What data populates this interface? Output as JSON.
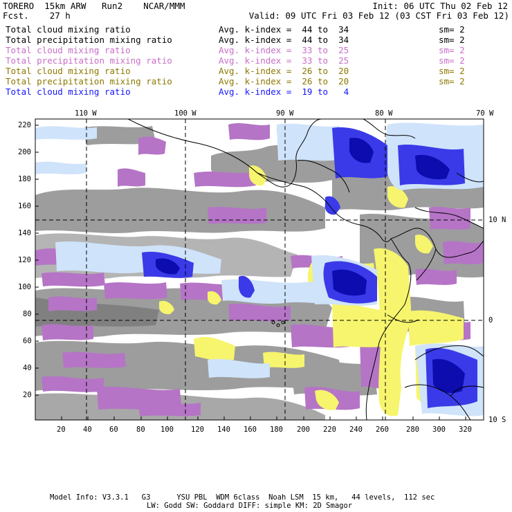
{
  "header": {
    "title": "TORERO  15km ARW   Run2    NCAR/MMM",
    "forecast": "Fcst.    27 h",
    "init": "Init: 06 UTC Thu 02 Feb 12",
    "valid": "Valid: 09 UTC Fri 03 Feb 12 (03 CST Fri 03 Feb 12)"
  },
  "legend": [
    {
      "field": "Total cloud mixing ratio",
      "index": "Avg. k-index =  44 to  34",
      "sm": "sm= 2",
      "color": "#000000"
    },
    {
      "field": "Total precipitation mixing ratio",
      "index": "Avg. k-index =  44 to  34",
      "sm": "sm= 2",
      "color": "#000000"
    },
    {
      "field": "Total cloud mixing ratio",
      "index": "Avg. k-index =  33 to  25",
      "sm": "sm= 2",
      "color": "#c86ec8"
    },
    {
      "field": "Total precipitation mixing ratio",
      "index": "Avg. k-index =  33 to  25",
      "sm": "sm= 2",
      "color": "#c86ec8"
    },
    {
      "field": "Total cloud mixing ratio",
      "index": "Avg. k-index =  26 to  20",
      "sm": "sm= 2",
      "color": "#8c7800"
    },
    {
      "field": "Total precipitation mixing ratio",
      "index": "Avg. k-index =  26 to  20",
      "sm": "sm= 2",
      "color": "#8c7800"
    },
    {
      "field": "Total cloud mixing ratio",
      "index": "Avg. k-index =  19 to   4",
      "sm": "",
      "color": "#1414ff"
    }
  ],
  "map": {
    "lon_labels": [
      "110 W",
      "100 W",
      "90 W",
      "80 W",
      "70 W"
    ],
    "lat_labels": [
      "10 N",
      "0",
      "10 S"
    ],
    "y_ticks": [
      "220",
      "200",
      "180",
      "160",
      "140",
      "120",
      "100",
      "80",
      "60",
      "40",
      "20"
    ],
    "x_ticks": [
      "20",
      "40",
      "60",
      "80",
      "100",
      "120",
      "140",
      "160",
      "180",
      "200",
      "220",
      "240",
      "260",
      "280",
      "300",
      "320"
    ]
  },
  "footer": {
    "line1": "Model Info: V3.3.1   G3      YSU PBL  WDM 6class  Noah LSM  15 km,   44 levels,  112 sec",
    "line2": "LW: Godd SW: Goddard DIFF: simple KM: 2D Smagor"
  },
  "colors": {
    "gray_cloud": "#9a9a9a",
    "purple_cloud": "#b070c0",
    "yellow_precip": "#f5f56a",
    "light_blue": "#cfe6fb",
    "blue": "#2a2ae6",
    "dark_blue": "#0a0ab4"
  }
}
